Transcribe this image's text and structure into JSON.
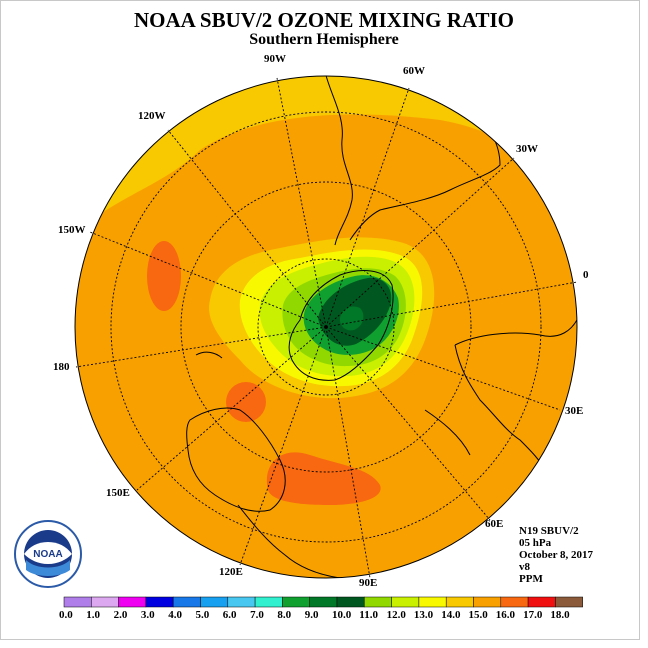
{
  "title": "NOAA SBUV/2 OZONE MIXING RATIO",
  "subtitle": "Southern Hemisphere",
  "info": {
    "satellite": "N19 SBUV/2",
    "level": "05 hPa",
    "date": "October 8, 2017",
    "version": "v8",
    "units": "PPM"
  },
  "longitude_labels": [
    {
      "id": "lon-90w",
      "text": "90W"
    },
    {
      "id": "lon-60w",
      "text": "60W"
    },
    {
      "id": "lon-30w",
      "text": "30W"
    },
    {
      "id": "lon-0",
      "text": "0"
    },
    {
      "id": "lon-30e",
      "text": "30E"
    },
    {
      "id": "lon-60e",
      "text": "60E"
    },
    {
      "id": "lon-90e",
      "text": "90E"
    },
    {
      "id": "lon-120e",
      "text": "120E"
    },
    {
      "id": "lon-150e",
      "text": "150E"
    },
    {
      "id": "lon-180",
      "text": "180"
    },
    {
      "id": "lon-150w",
      "text": "150W"
    },
    {
      "id": "lon-120w",
      "text": "120W"
    }
  ],
  "colorbar": {
    "labels": [
      "0.0",
      "1.0",
      "2.0",
      "3.0",
      "4.0",
      "5.0",
      "6.0",
      "7.0",
      "8.0",
      "9.0",
      "10.0",
      "11.0",
      "12.0",
      "13.0",
      "14.0",
      "15.0",
      "16.0",
      "17.0",
      "18.0"
    ],
    "colors": [
      "#b07ee8",
      "#dca8f0",
      "#f000f0",
      "#0000e0",
      "#1878e8",
      "#18a0f0",
      "#48c8f0",
      "#30f0d0",
      "#10a030",
      "#007828",
      "#005820",
      "#90d800",
      "#c8f000",
      "#f8f800",
      "#f8c800",
      "#f8a000",
      "#f86810",
      "#f01010",
      "#8a5a3a"
    ]
  },
  "logo": {
    "text": "NOAA"
  }
}
